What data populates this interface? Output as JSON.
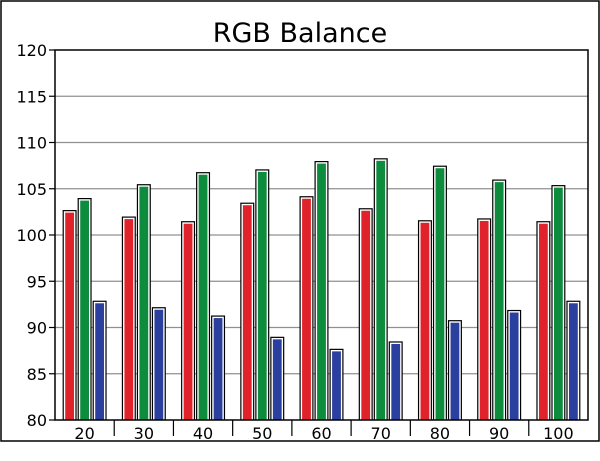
{
  "chart_data": {
    "type": "bar",
    "title": "RGB Balance",
    "xlabel": "",
    "ylabel": "",
    "ylim": [
      80,
      120
    ],
    "yticks": [
      "80",
      "85",
      "90",
      "95",
      "100",
      "105",
      "110",
      "115",
      "120"
    ],
    "categories": [
      "20",
      "30",
      "40",
      "50",
      "60",
      "70",
      "80",
      "90",
      "100"
    ],
    "series": [
      {
        "color": "#e0222a",
        "values": [
          102.7,
          102.0,
          101.5,
          103.5,
          104.2,
          102.9,
          101.6,
          101.8,
          101.5
        ]
      },
      {
        "color": "#0d8c3e",
        "values": [
          104.0,
          105.5,
          106.8,
          107.1,
          108.0,
          108.3,
          107.5,
          106.0,
          105.4
        ]
      },
      {
        "color": "#2b3f9e",
        "values": [
          92.9,
          92.2,
          91.3,
          89.0,
          87.7,
          88.5,
          90.8,
          91.9,
          92.9
        ]
      }
    ],
    "grid": true,
    "legend": "none"
  }
}
